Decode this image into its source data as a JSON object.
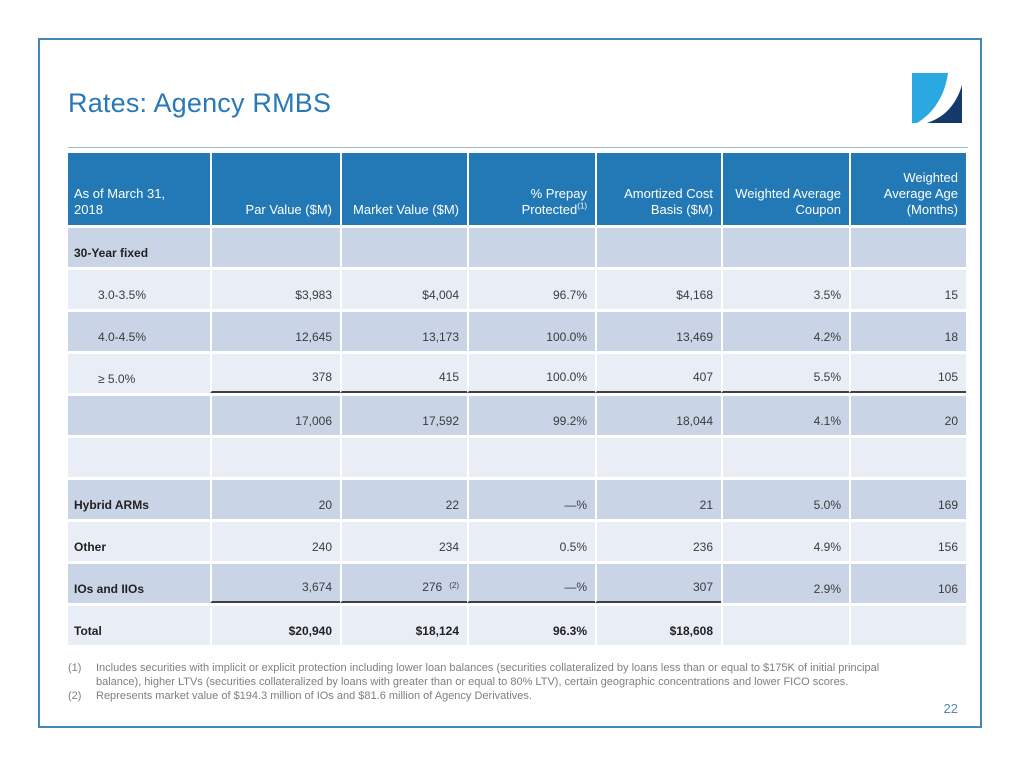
{
  "slide": {
    "title": "Rates: Agency RMBS",
    "page_number": "22"
  },
  "colors": {
    "frame_border": "#4688B4",
    "title": "#2A78B6",
    "header_bg": "#2279B6",
    "band_dark": "#C9D5E7",
    "band_light": "#E9EDF5",
    "rule_dark": "#3F3F3F",
    "footnote_text": "#7F7F7F",
    "page_number": "#5E87AD",
    "logo_light": "#29A9E0",
    "logo_navy": "#16396B"
  },
  "logo": {
    "name": "company-logo"
  },
  "table": {
    "columns": [
      {
        "lines": [
          "As of March 31,",
          "2018"
        ]
      },
      {
        "lines": [
          "Par Value ($M)"
        ]
      },
      {
        "lines": [
          "Market Value ($M)"
        ]
      },
      {
        "lines": [
          "% Prepay",
          "Protected"
        ],
        "sup": "(1)"
      },
      {
        "lines": [
          "Amortized Cost",
          "Basis ($M)"
        ]
      },
      {
        "lines": [
          "Weighted Average",
          "Coupon"
        ]
      },
      {
        "lines": [
          "Weighted",
          "Average Age",
          "(Months)"
        ]
      }
    ],
    "rows": [
      {
        "type": "section",
        "label": "30-Year fixed",
        "values": [
          "",
          "",
          "",
          "",
          "",
          ""
        ]
      },
      {
        "type": "sub",
        "label": "3.0-3.5%",
        "values": [
          "$3,983",
          "$4,004",
          "96.7%",
          "$4,168",
          "3.5%",
          "15"
        ]
      },
      {
        "type": "sub",
        "label": "4.0-4.5%",
        "values": [
          "12,645",
          "13,173",
          "100.0%",
          "13,469",
          "4.2%",
          "18"
        ]
      },
      {
        "type": "sub",
        "label": "≥ 5.0%",
        "values": [
          "378",
          "415",
          "100.0%",
          "407",
          "5.5%",
          "105"
        ],
        "rule_below": [
          1,
          2,
          3,
          4,
          5,
          6
        ]
      },
      {
        "type": "subtotal",
        "label": "",
        "values": [
          "17,006",
          "17,592",
          "99.2%",
          "18,044",
          "4.1%",
          "20"
        ]
      },
      {
        "type": "spacer",
        "label": "",
        "values": [
          "",
          "",
          "",
          "",
          "",
          ""
        ]
      },
      {
        "type": "section",
        "label": "Hybrid ARMs",
        "values": [
          "20",
          "22",
          "—%",
          "21",
          "5.0%",
          "169"
        ]
      },
      {
        "type": "section",
        "label": "Other",
        "values": [
          "240",
          "234",
          "0.5%",
          "236",
          "4.9%",
          "156"
        ]
      },
      {
        "type": "section",
        "label": "IOs and IIOs",
        "values": [
          "3,674",
          "276",
          "—%",
          "307",
          "2.9%",
          "106"
        ],
        "value_sup": {
          "1": "(2)"
        },
        "rule_below": [
          1,
          2,
          3,
          4
        ]
      },
      {
        "type": "total",
        "label": "Total",
        "values": [
          "$20,940",
          "$18,124",
          "96.3%",
          "$18,608",
          "",
          ""
        ]
      }
    ]
  },
  "footnotes": [
    {
      "num": "(1)",
      "text": "Includes securities with implicit or explicit protection including lower loan balances (securities collateralized by loans less than or equal to $175K of initial principal balance), higher LTVs (securities collateralized by loans with greater than or equal to 80% LTV), certain geographic concentrations and lower FICO scores."
    },
    {
      "num": "(2)",
      "text": "Represents market value of $194.3 million of IOs and $81.6 million of Agency Derivatives."
    }
  ]
}
